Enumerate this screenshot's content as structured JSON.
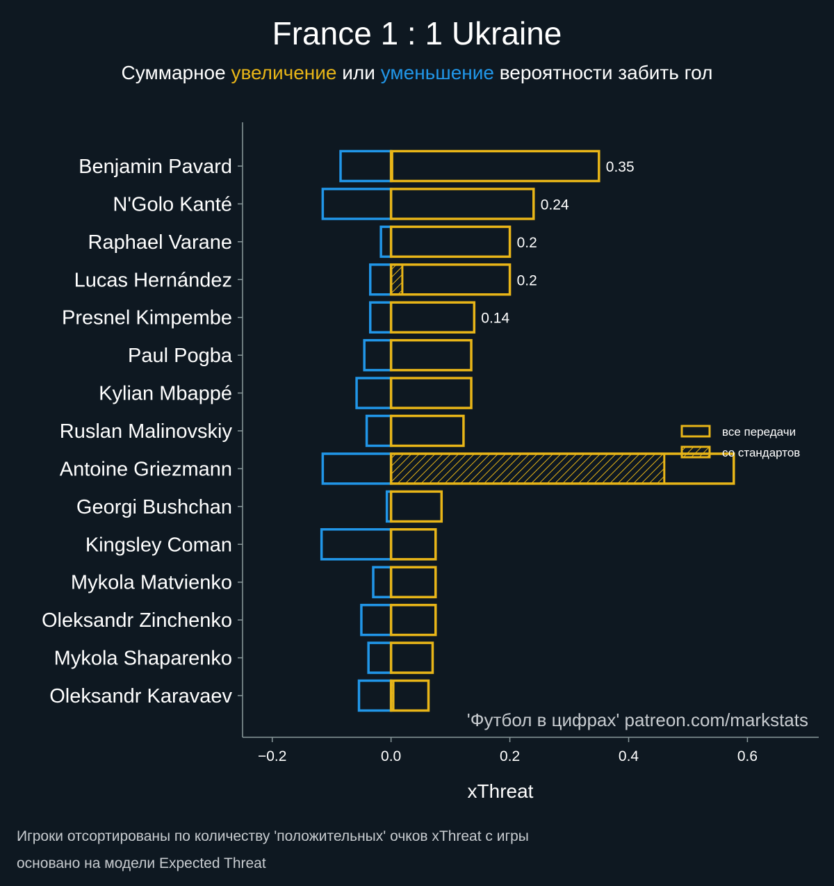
{
  "colors": {
    "background": "#0e1821",
    "positive": "#e8b518",
    "negative": "#2196e8",
    "axis": "#8b9a9c",
    "text": "#ffffff",
    "muted": "#c8ccd0"
  },
  "header": {
    "title": "France 1 : 1 Ukraine",
    "subtitle_parts": [
      {
        "text": "Суммарное ",
        "color": "#ffffff"
      },
      {
        "text": "увеличение",
        "color": "#e8b518"
      },
      {
        "text": " или ",
        "color": "#ffffff"
      },
      {
        "text": "уменьшение",
        "color": "#2196e8"
      },
      {
        "text": " вероятности забить гол",
        "color": "#ffffff"
      }
    ]
  },
  "legend": {
    "all_passes": "все передачи",
    "set_pieces": "со стандартов"
  },
  "watermark": "'Футбол в цифрах' patreon.com/markstats",
  "footnotes": [
    "Игроки отсортированы по количеству 'положительных' очков xThreat с игры",
    "основано на модели Expected Threat"
  ],
  "chart_data": {
    "type": "bar",
    "orientation": "horizontal",
    "xlabel": "xThreat",
    "xlim": [
      -0.25,
      0.72
    ],
    "xticks": [
      -0.2,
      0.0,
      0.2,
      0.4,
      0.6
    ],
    "xtick_labels": [
      "−0.2",
      "0.0",
      "0.2",
      "0.4",
      "0.6"
    ],
    "categories": [
      "Benjamin Pavard",
      "N'Golo Kanté",
      "Raphael Varane",
      "Lucas Hernández",
      "Presnel Kimpembe",
      "Paul Pogba",
      "Kylian Mbappé",
      "Ruslan Malinovskiy",
      "Antoine Griezmann",
      "Georgi Bushchan",
      "Kingsley Coman",
      "Mykola Matvienko",
      "Oleksandr Zinchenko",
      "Mykola Shaparenko",
      "Oleksandr Karavaev"
    ],
    "series": [
      {
        "name": "увеличение",
        "values": [
          0.35,
          0.24,
          0.2,
          0.2,
          0.14,
          0.135,
          0.135,
          0.122,
          0.577,
          0.085,
          0.075,
          0.075,
          0.075,
          0.07,
          0.063
        ]
      },
      {
        "name": "уменьшение",
        "values": [
          -0.085,
          -0.115,
          -0.017,
          -0.035,
          -0.035,
          -0.045,
          -0.058,
          -0.041,
          -0.115,
          -0.007,
          -0.117,
          -0.03,
          -0.05,
          -0.038,
          -0.054
        ]
      },
      {
        "name": "со стандартов",
        "values": [
          0.002,
          0,
          0,
          0.019,
          0,
          0,
          0,
          0,
          0.46,
          0,
          0,
          0,
          0,
          0,
          0.004
        ]
      }
    ],
    "value_labels": [
      "0.35",
      "0.24",
      "0.2",
      "0.2",
      "0.14",
      "",
      "",
      "",
      "",
      "",
      "",
      "",
      "",
      "",
      ""
    ],
    "legend_position": "right",
    "grid": false
  }
}
